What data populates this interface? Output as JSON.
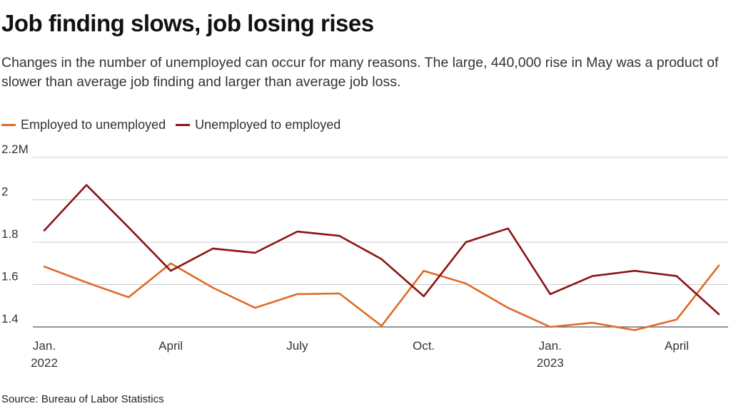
{
  "header": {
    "title": "Job finding slows, job losing rises",
    "subtitle": "Changes in the number of unemployed can occur for many reasons. The large, 440,000 rise in May was a product of slower than average job finding and larger than average job loss."
  },
  "footer": {
    "source": "Source: Bureau of Labor Statistics"
  },
  "chart_data": {
    "type": "line",
    "title": "Job finding slows, job losing rises",
    "x": [
      "2022-01",
      "2022-02",
      "2022-03",
      "2022-04",
      "2022-05",
      "2022-06",
      "2022-07",
      "2022-08",
      "2022-09",
      "2022-10",
      "2022-11",
      "2022-12",
      "2023-01",
      "2023-02",
      "2023-03",
      "2023-04",
      "2023-05"
    ],
    "x_tick_labels": [
      {
        "x": "2022-01",
        "line1": "Jan.",
        "line2": "2022"
      },
      {
        "x": "2022-04",
        "line1": "April",
        "line2": ""
      },
      {
        "x": "2022-07",
        "line1": "July",
        "line2": ""
      },
      {
        "x": "2022-10",
        "line1": "Oct.",
        "line2": ""
      },
      {
        "x": "2023-01",
        "line1": "Jan.",
        "line2": "2023"
      },
      {
        "x": "2023-04",
        "line1": "April",
        "line2": ""
      }
    ],
    "y_ticks": [
      {
        "value": 1.4,
        "label": "1.4"
      },
      {
        "value": 1.6,
        "label": "1.6"
      },
      {
        "value": 1.8,
        "label": "1.8"
      },
      {
        "value": 2.0,
        "label": "2"
      },
      {
        "value": 2.2,
        "label": "2.2M"
      }
    ],
    "ylim": [
      1.4,
      2.2
    ],
    "xlabel": "",
    "ylabel": "",
    "grid": true,
    "legend_position": "top-left",
    "series": [
      {
        "name": "Employed to unemployed",
        "color": "#e06a26",
        "values": [
          1.685,
          1.61,
          1.54,
          1.7,
          1.585,
          1.49,
          1.555,
          1.558,
          1.405,
          1.665,
          1.605,
          1.49,
          1.4,
          1.42,
          1.385,
          1.435,
          1.69
        ]
      },
      {
        "name": "Unemployed to employed",
        "color": "#8b1212",
        "values": [
          1.855,
          2.07,
          1.87,
          1.665,
          1.77,
          1.75,
          1.85,
          1.83,
          1.72,
          1.545,
          1.8,
          1.865,
          1.555,
          1.64,
          1.665,
          1.64,
          1.46
        ]
      }
    ]
  }
}
